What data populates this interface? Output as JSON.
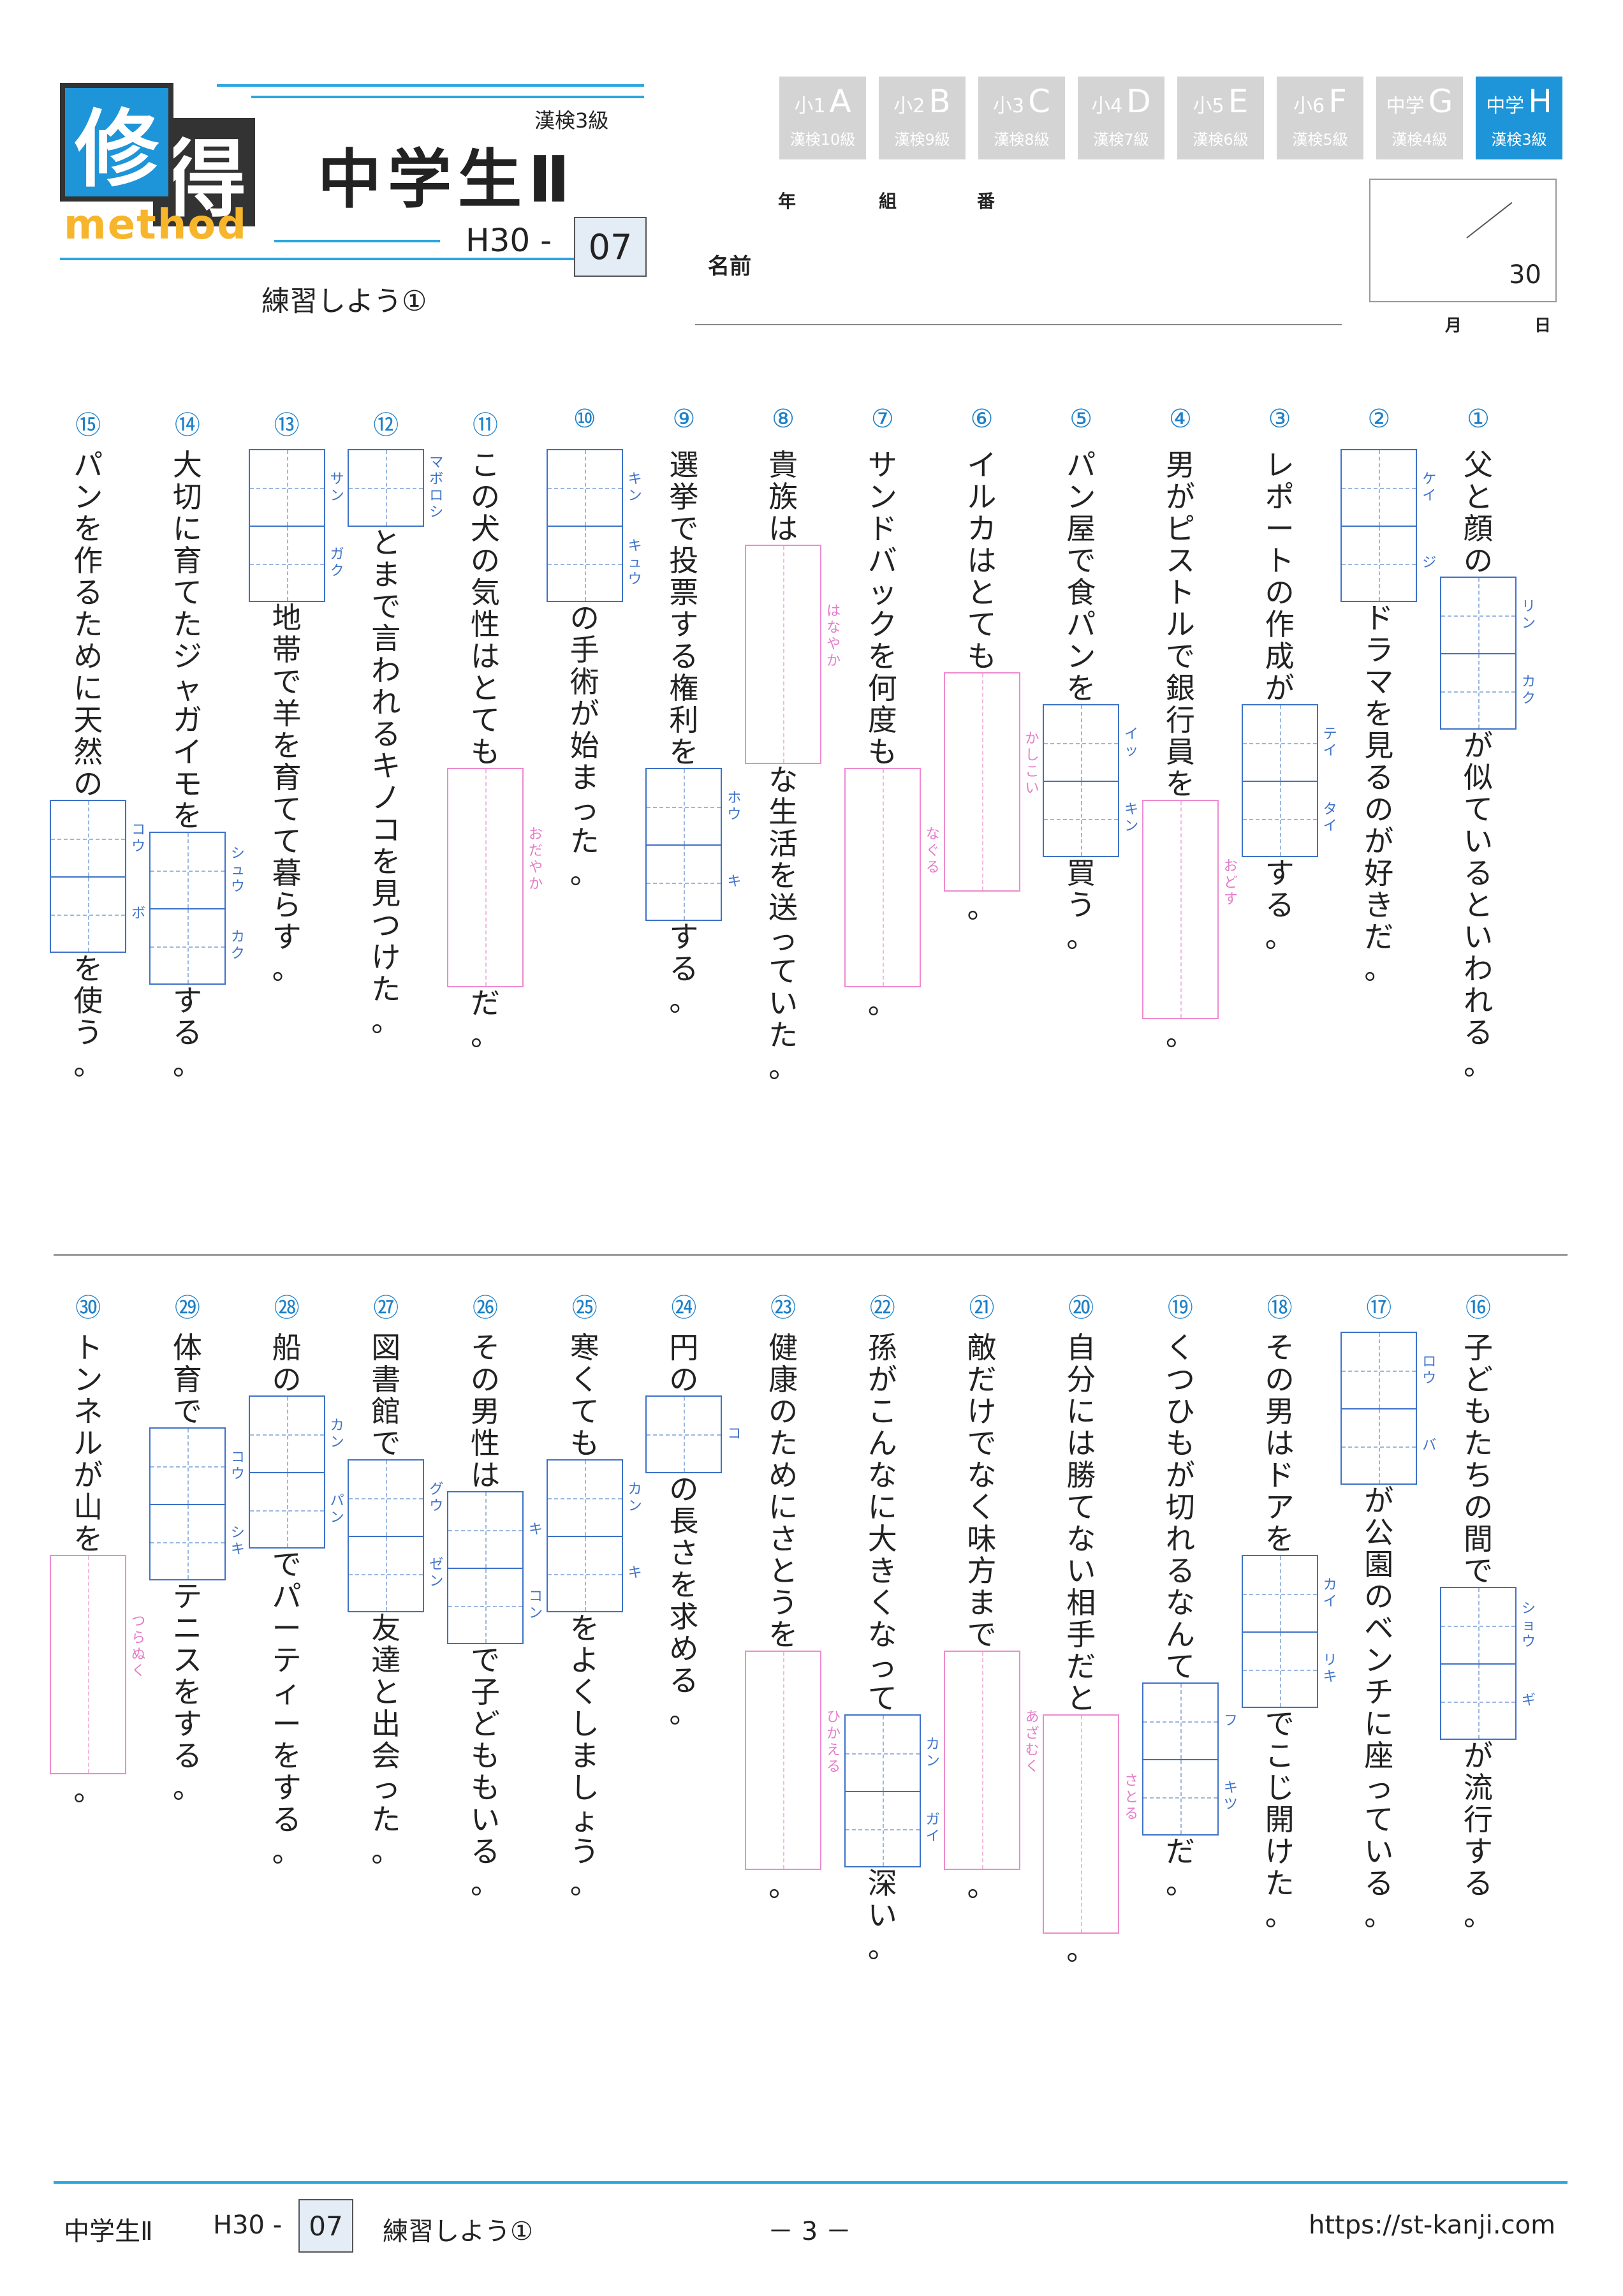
{
  "logo": {
    "char1": "修",
    "char2": "得",
    "word": "method"
  },
  "header": {
    "title": "中学生Ⅱ",
    "level": "漢検3級",
    "code_prefix": "H30 -",
    "code_number": "07",
    "subtitle": "練習しよう①"
  },
  "tabs": [
    {
      "small": "小1",
      "big": "A",
      "kanken": "漢検10級",
      "active": false
    },
    {
      "small": "小2",
      "big": "B",
      "kanken": "漢検9級",
      "active": false
    },
    {
      "small": "小3",
      "big": "C",
      "kanken": "漢検8級",
      "active": false
    },
    {
      "small": "小4",
      "big": "D",
      "kanken": "漢検7級",
      "active": false
    },
    {
      "small": "小5",
      "big": "E",
      "kanken": "漢検6級",
      "active": false
    },
    {
      "small": "小6",
      "big": "F",
      "kanken": "漢検5級",
      "active": false
    },
    {
      "small": "中学",
      "big": "G",
      "kanken": "漢検4級",
      "active": false
    },
    {
      "small": "中学",
      "big": "H",
      "kanken": "漢検3級",
      "active": true
    }
  ],
  "info": {
    "year": "年",
    "class": "組",
    "number": "番",
    "name": "名前",
    "score_total": "30",
    "month": "月",
    "day": "日"
  },
  "questions": [
    {
      "num": "①",
      "parts": [
        {
          "t": "父と顔の"
        },
        {
          "k": "リン|カク"
        },
        {
          "t": "が似ているといわれる。"
        }
      ]
    },
    {
      "num": "②",
      "parts": [
        {
          "k": "ケイ|ジ"
        },
        {
          "t": "ドラマを見るのが好きだ。"
        }
      ]
    },
    {
      "num": "③",
      "parts": [
        {
          "t": "レポートの作成が"
        },
        {
          "k": "テイ|タイ"
        },
        {
          "t": "する。"
        }
      ]
    },
    {
      "num": "④",
      "parts": [
        {
          "t": "男がピストルで銀行員を"
        },
        {
          "h": "おどす"
        },
        {
          "t": "。"
        }
      ]
    },
    {
      "num": "⑤",
      "parts": [
        {
          "t": "パン屋で食パンを"
        },
        {
          "k": "イッ|キン"
        },
        {
          "t": "買う。"
        }
      ]
    },
    {
      "num": "⑥",
      "parts": [
        {
          "t": "イルカはとても"
        },
        {
          "h": "かしこい"
        },
        {
          "t": "。"
        }
      ]
    },
    {
      "num": "⑦",
      "parts": [
        {
          "t": "サンドバックを何度も"
        },
        {
          "h": "なぐる"
        },
        {
          "t": "。"
        }
      ]
    },
    {
      "num": "⑧",
      "parts": [
        {
          "t": "貴族は"
        },
        {
          "h": "はなやか"
        },
        {
          "t": "な生活を送っていた。"
        }
      ]
    },
    {
      "num": "⑨",
      "parts": [
        {
          "t": "選挙で投票する権利を"
        },
        {
          "k": "ホウ|キ"
        },
        {
          "t": "する。"
        }
      ]
    },
    {
      "num": "⑩",
      "parts": [
        {
          "k": "キン|キュウ"
        },
        {
          "t": "の手術が始まった。"
        }
      ]
    },
    {
      "num": "⑪",
      "parts": [
        {
          "t": "この犬の気性はとても"
        },
        {
          "h": "おだやか"
        },
        {
          "t": "だ。"
        }
      ]
    },
    {
      "num": "⑫",
      "parts": [
        {
          "k": "マボロシ"
        },
        {
          "t": "とまで言われるキノコを見つけた。"
        }
      ]
    },
    {
      "num": "⑬",
      "parts": [
        {
          "k": "サン|ガク"
        },
        {
          "t": "地帯で羊を育てて暮らす。"
        }
      ]
    },
    {
      "num": "⑭",
      "parts": [
        {
          "t": "大切に育てたジャガイモを"
        },
        {
          "k": "シュウ|カク"
        },
        {
          "t": "する。"
        }
      ]
    },
    {
      "num": "⑮",
      "parts": [
        {
          "t": "パンを作るために天然の"
        },
        {
          "k": "コウ|ボ"
        },
        {
          "t": "を使う。"
        }
      ]
    },
    {
      "num": "⑯",
      "parts": [
        {
          "t": "子どもたちの間で"
        },
        {
          "k": "ショウ|ギ"
        },
        {
          "t": "が流行する。"
        }
      ]
    },
    {
      "num": "⑰",
      "parts": [
        {
          "k": "ロウ|バ"
        },
        {
          "t": "が公園のベンチに座っている。"
        }
      ]
    },
    {
      "num": "⑱",
      "parts": [
        {
          "t": "その男はドアを"
        },
        {
          "k": "カイ|リキ"
        },
        {
          "t": "でこじ開けた。"
        }
      ]
    },
    {
      "num": "⑲",
      "parts": [
        {
          "t": "くつひもが切れるなんて"
        },
        {
          "k": "フ|キツ"
        },
        {
          "t": "だ。"
        }
      ]
    },
    {
      "num": "⑳",
      "parts": [
        {
          "t": "自分には勝てない相手だと"
        },
        {
          "h": "さとる"
        },
        {
          "t": "。"
        }
      ]
    },
    {
      "num": "㉑",
      "parts": [
        {
          "t": "敵だけでなく味方まで"
        },
        {
          "h": "あざむく"
        },
        {
          "t": "。"
        }
      ]
    },
    {
      "num": "㉒",
      "parts": [
        {
          "t": "孫がこんなに大きくなって"
        },
        {
          "k": "カン|ガイ"
        },
        {
          "t": "深い。"
        }
      ]
    },
    {
      "num": "㉓",
      "parts": [
        {
          "t": "健康のためにさとうを"
        },
        {
          "h": "ひかえる"
        },
        {
          "t": "。"
        }
      ]
    },
    {
      "num": "㉔",
      "parts": [
        {
          "t": "円の"
        },
        {
          "k": "コ"
        },
        {
          "t": "の長さを求める。"
        }
      ]
    },
    {
      "num": "㉕",
      "parts": [
        {
          "t": "寒くても"
        },
        {
          "k": "カン|キ"
        },
        {
          "t": "をよくしましょう。"
        }
      ]
    },
    {
      "num": "㉖",
      "parts": [
        {
          "t": "その男性は"
        },
        {
          "k": "キ|コン"
        },
        {
          "t": "で子どももいる。"
        }
      ]
    },
    {
      "num": "㉗",
      "parts": [
        {
          "t": "図書館で"
        },
        {
          "k": "グウ|ゼン"
        },
        {
          "t": "友達と出会った。"
        }
      ]
    },
    {
      "num": "㉘",
      "parts": [
        {
          "t": "船の"
        },
        {
          "k": "カン|パン"
        },
        {
          "t": "でパーティーをする。"
        }
      ]
    },
    {
      "num": "㉙",
      "parts": [
        {
          "t": "体育で"
        },
        {
          "k": "コウ|シキ"
        },
        {
          "t": "テニスをする。"
        }
      ]
    },
    {
      "num": "㉚",
      "parts": [
        {
          "t": "トンネルが山を"
        },
        {
          "h": "つらぬく"
        },
        {
          "t": "。"
        }
      ]
    }
  ],
  "footer": {
    "title": "中学生Ⅱ",
    "code_prefix": "H30 -",
    "code_number": "07",
    "subtitle": "練習しよう①",
    "page": "－ 3 －",
    "url": "https://st-kanji.com"
  }
}
